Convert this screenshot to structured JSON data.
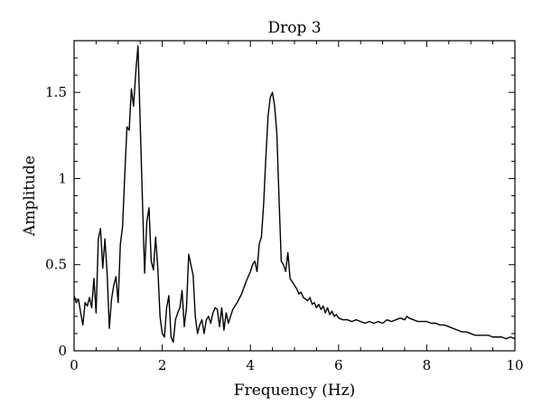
{
  "chart_data": {
    "type": "line",
    "title": "Drop 3",
    "xlabel": "Frequency (Hz)",
    "ylabel": "Amplitude",
    "xlim": [
      0,
      10
    ],
    "ylim": [
      0,
      1.8
    ],
    "grid": false,
    "x_ticks": [
      0,
      2,
      4,
      6,
      8,
      10
    ],
    "x_tick_labels": [
      "0",
      "2",
      "4",
      "6",
      "8",
      "10"
    ],
    "y_ticks": [
      0,
      0.5,
      1,
      1.5
    ],
    "y_tick_labels": [
      "0",
      "0.5",
      "1",
      "1.5"
    ],
    "series": [
      {
        "x": [
          0.0,
          0.05,
          0.1,
          0.15,
          0.2,
          0.25,
          0.3,
          0.35,
          0.4,
          0.45,
          0.5,
          0.55,
          0.6,
          0.65,
          0.7,
          0.75,
          0.8,
          0.85,
          0.9,
          0.95,
          1.0,
          1.05,
          1.1,
          1.15,
          1.2,
          1.25,
          1.3,
          1.35,
          1.4,
          1.45,
          1.5,
          1.55,
          1.6,
          1.65,
          1.7,
          1.75,
          1.8,
          1.85,
          1.9,
          1.95,
          2.0,
          2.05,
          2.1,
          2.15,
          2.2,
          2.25,
          2.3,
          2.35,
          2.4,
          2.45,
          2.5,
          2.55,
          2.6,
          2.65,
          2.7,
          2.75,
          2.8,
          2.85,
          2.9,
          2.95,
          3.0,
          3.05,
          3.1,
          3.15,
          3.2,
          3.25,
          3.3,
          3.35,
          3.4,
          3.45,
          3.5,
          3.6,
          3.7,
          3.8,
          3.9,
          4.0,
          4.05,
          4.1,
          4.15,
          4.2,
          4.25,
          4.3,
          4.35,
          4.4,
          4.45,
          4.5,
          4.55,
          4.6,
          4.65,
          4.7,
          4.75,
          4.8,
          4.85,
          4.9,
          4.95,
          5.0,
          5.05,
          5.1,
          5.15,
          5.2,
          5.25,
          5.3,
          5.35,
          5.4,
          5.45,
          5.5,
          5.55,
          5.6,
          5.65,
          5.7,
          5.75,
          5.8,
          5.85,
          5.9,
          5.95,
          6.0,
          6.1,
          6.2,
          6.3,
          6.4,
          6.5,
          6.6,
          6.7,
          6.8,
          6.9,
          7.0,
          7.1,
          7.2,
          7.3,
          7.4,
          7.5,
          7.55,
          7.6,
          7.7,
          7.8,
          7.9,
          8.0,
          8.1,
          8.2,
          8.3,
          8.4,
          8.5,
          8.6,
          8.7,
          8.8,
          8.9,
          9.0,
          9.1,
          9.2,
          9.3,
          9.4,
          9.5,
          9.6,
          9.7,
          9.8,
          9.9,
          10.0
        ],
        "y": [
          0.32,
          0.28,
          0.3,
          0.22,
          0.15,
          0.28,
          0.26,
          0.31,
          0.25,
          0.42,
          0.22,
          0.65,
          0.71,
          0.48,
          0.65,
          0.45,
          0.13,
          0.3,
          0.38,
          0.43,
          0.28,
          0.62,
          0.72,
          1.02,
          1.3,
          1.28,
          1.52,
          1.42,
          1.62,
          1.77,
          1.32,
          0.88,
          0.45,
          0.75,
          0.83,
          0.52,
          0.47,
          0.66,
          0.48,
          0.2,
          0.1,
          0.08,
          0.25,
          0.32,
          0.08,
          0.05,
          0.18,
          0.22,
          0.25,
          0.35,
          0.14,
          0.25,
          0.56,
          0.5,
          0.44,
          0.2,
          0.1,
          0.15,
          0.18,
          0.1,
          0.18,
          0.2,
          0.16,
          0.22,
          0.25,
          0.24,
          0.14,
          0.25,
          0.12,
          0.22,
          0.16,
          0.24,
          0.28,
          0.33,
          0.4,
          0.46,
          0.5,
          0.52,
          0.46,
          0.62,
          0.66,
          0.85,
          1.12,
          1.36,
          1.47,
          1.5,
          1.42,
          1.26,
          0.88,
          0.52,
          0.5,
          0.46,
          0.57,
          0.42,
          0.4,
          0.38,
          0.36,
          0.33,
          0.34,
          0.31,
          0.3,
          0.29,
          0.31,
          0.27,
          0.28,
          0.25,
          0.27,
          0.24,
          0.26,
          0.22,
          0.25,
          0.21,
          0.23,
          0.2,
          0.21,
          0.19,
          0.18,
          0.18,
          0.17,
          0.18,
          0.17,
          0.16,
          0.17,
          0.16,
          0.17,
          0.16,
          0.18,
          0.17,
          0.18,
          0.19,
          0.18,
          0.2,
          0.19,
          0.18,
          0.17,
          0.17,
          0.17,
          0.16,
          0.16,
          0.15,
          0.15,
          0.14,
          0.13,
          0.12,
          0.11,
          0.11,
          0.1,
          0.09,
          0.09,
          0.09,
          0.09,
          0.08,
          0.08,
          0.08,
          0.07,
          0.08,
          0.07
        ]
      }
    ]
  }
}
